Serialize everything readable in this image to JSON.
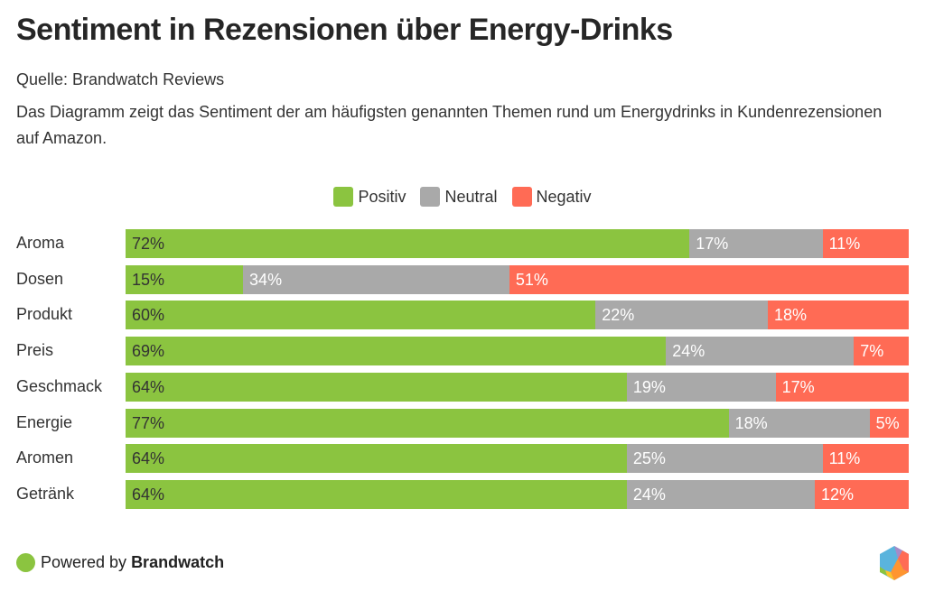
{
  "header": {
    "title": "Sentiment in Rezensionen über Energy-Drinks",
    "source": "Quelle: Brandwatch Reviews",
    "description": "Das Diagramm zeigt das Sentiment der am häufigsten genannten Themen rund um Energydrinks in Kundenrezensionen auf Amazon."
  },
  "footer": {
    "powered_by": "Powered by",
    "brand": "Brandwatch",
    "logo_icon": "brandwatch-hexagon-logo"
  },
  "chart_data": {
    "type": "bar",
    "orientation": "horizontal",
    "stacked": true,
    "normalized": true,
    "title": "Sentiment in Rezensionen über Energy-Drinks",
    "xlabel": "",
    "ylabel": "",
    "xlim": [
      0,
      100
    ],
    "grid": false,
    "legend_position": "top-center",
    "categories": [
      "Aroma",
      "Dosen",
      "Produkt",
      "Preis",
      "Geschmack",
      "Energie",
      "Aromen",
      "Getränk"
    ],
    "series": [
      {
        "name": "Positiv",
        "color": "#8bc440",
        "label_color": "#333333",
        "values": [
          72,
          15,
          60,
          69,
          64,
          77,
          64,
          64
        ]
      },
      {
        "name": "Neutral",
        "color": "#a9a9a9",
        "label_color": "#ffffff",
        "values": [
          17,
          34,
          22,
          24,
          19,
          18,
          25,
          24
        ]
      },
      {
        "name": "Negativ",
        "color": "#ff6b55",
        "label_color": "#ffffff",
        "values": [
          11,
          51,
          18,
          7,
          17,
          5,
          11,
          12
        ]
      }
    ],
    "value_suffix": "%"
  }
}
